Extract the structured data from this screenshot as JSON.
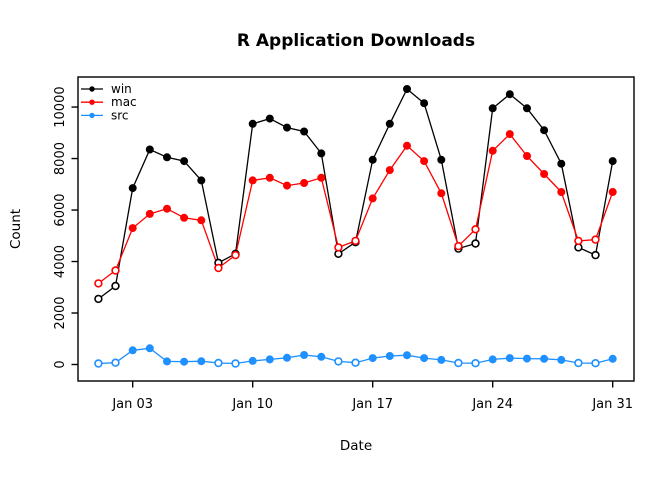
{
  "chart_data": {
    "type": "line",
    "title": "R Application Downloads",
    "xlabel": "Date",
    "ylabel": "Count",
    "x_tick_labels": [
      "Jan 03",
      "Jan 10",
      "Jan 17",
      "Jan 24",
      "Jan 31"
    ],
    "x_tick_days": [
      3,
      10,
      17,
      24,
      31
    ],
    "y_ticks": [
      0,
      2000,
      4000,
      6000,
      8000,
      10000
    ],
    "ylim": [
      0,
      10800
    ],
    "x_range_days": [
      "Jan 01",
      "Jan 31"
    ],
    "days": [
      "Jan 01",
      "Jan 02",
      "Jan 03",
      "Jan 04",
      "Jan 05",
      "Jan 06",
      "Jan 07",
      "Jan 08",
      "Jan 09",
      "Jan 10",
      "Jan 11",
      "Jan 12",
      "Jan 13",
      "Jan 14",
      "Jan 15",
      "Jan 16",
      "Jan 17",
      "Jan 18",
      "Jan 19",
      "Jan 20",
      "Jan 21",
      "Jan 22",
      "Jan 23",
      "Jan 24",
      "Jan 25",
      "Jan 26",
      "Jan 27",
      "Jan 28",
      "Jan 29",
      "Jan 30",
      "Jan 31"
    ],
    "weekend_days_open_markers": [
      1,
      2,
      8,
      9,
      15,
      16,
      22,
      23,
      29,
      30
    ],
    "marker_style": {
      "weekday": "filled-circle",
      "weekend": "open-circle"
    },
    "grid": false,
    "legend_position": "top-left",
    "series": [
      {
        "name": "win",
        "color": "#000000",
        "values": [
          2550,
          3050,
          6850,
          8350,
          8050,
          7900,
          7150,
          3950,
          4300,
          9350,
          9550,
          9200,
          9050,
          8200,
          4300,
          4750,
          7950,
          9350,
          10700,
          10150,
          7950,
          4500,
          4700,
          9950,
          10500,
          9950,
          9100,
          7800,
          4550,
          4250,
          7900
        ]
      },
      {
        "name": "mac",
        "color": "#FF0000",
        "values": [
          3150,
          3650,
          5300,
          5850,
          6050,
          5700,
          5600,
          3750,
          4250,
          7150,
          7250,
          6950,
          7050,
          7250,
          4550,
          4800,
          6450,
          7550,
          8500,
          7900,
          6650,
          4600,
          5250,
          8300,
          8950,
          8100,
          7400,
          6700,
          4800,
          4850,
          6700
        ]
      },
      {
        "name": "src",
        "color": "#1E90FF",
        "values": [
          40,
          70,
          550,
          630,
          120,
          110,
          130,
          60,
          40,
          140,
          200,
          260,
          370,
          300,
          120,
          70,
          250,
          330,
          360,
          250,
          180,
          60,
          50,
          200,
          250,
          230,
          220,
          180,
          60,
          50,
          220
        ]
      }
    ],
    "legend": {
      "entries": [
        "win",
        "mac",
        "src"
      ]
    }
  }
}
